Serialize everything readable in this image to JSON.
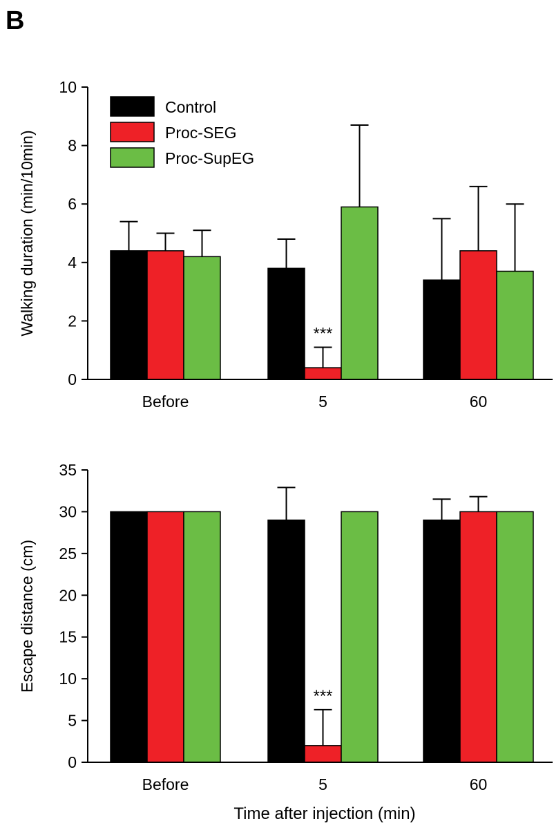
{
  "panel_label": "B",
  "xlabel": "Time after injection (min)",
  "chart_data": [
    {
      "type": "bar",
      "categories": [
        "Before",
        "5",
        "60"
      ],
      "ylabel": "Walking duration (min/10min)",
      "ylim": [
        0,
        10
      ],
      "yticks": [
        0,
        2,
        4,
        6,
        8,
        10
      ],
      "legend_position": "top-left",
      "series": [
        {
          "name": "Control",
          "color": "#000000",
          "values": [
            4.4,
            3.8,
            3.4
          ],
          "errors": [
            1.0,
            1.0,
            2.1
          ]
        },
        {
          "name": "Proc-SEG",
          "color": "#ee2127",
          "values": [
            4.4,
            0.4,
            4.4
          ],
          "errors": [
            0.6,
            0.7,
            2.2
          ]
        },
        {
          "name": "Proc-SupEG",
          "color": "#6bbd45",
          "values": [
            4.2,
            5.9,
            3.7
          ],
          "errors": [
            0.9,
            2.8,
            2.3
          ]
        }
      ],
      "annotations": [
        {
          "text": "***",
          "category": "5",
          "series": "Proc-SEG"
        }
      ]
    },
    {
      "type": "bar",
      "categories": [
        "Before",
        "5",
        "60"
      ],
      "ylabel": "Escape distance (cm)",
      "ylim": [
        0,
        35
      ],
      "yticks": [
        0,
        5,
        10,
        15,
        20,
        25,
        30,
        35
      ],
      "series": [
        {
          "name": "Control",
          "color": "#000000",
          "values": [
            30,
            29,
            29
          ],
          "errors": [
            0,
            3.9,
            2.5
          ]
        },
        {
          "name": "Proc-SEG",
          "color": "#ee2127",
          "values": [
            30,
            2,
            30
          ],
          "errors": [
            0,
            4.3,
            1.8
          ]
        },
        {
          "name": "Proc-SupEG",
          "color": "#6bbd45",
          "values": [
            30,
            30,
            30
          ],
          "errors": [
            0,
            0,
            0
          ]
        }
      ],
      "annotations": [
        {
          "text": "***",
          "category": "5",
          "series": "Proc-SEG"
        }
      ]
    }
  ]
}
